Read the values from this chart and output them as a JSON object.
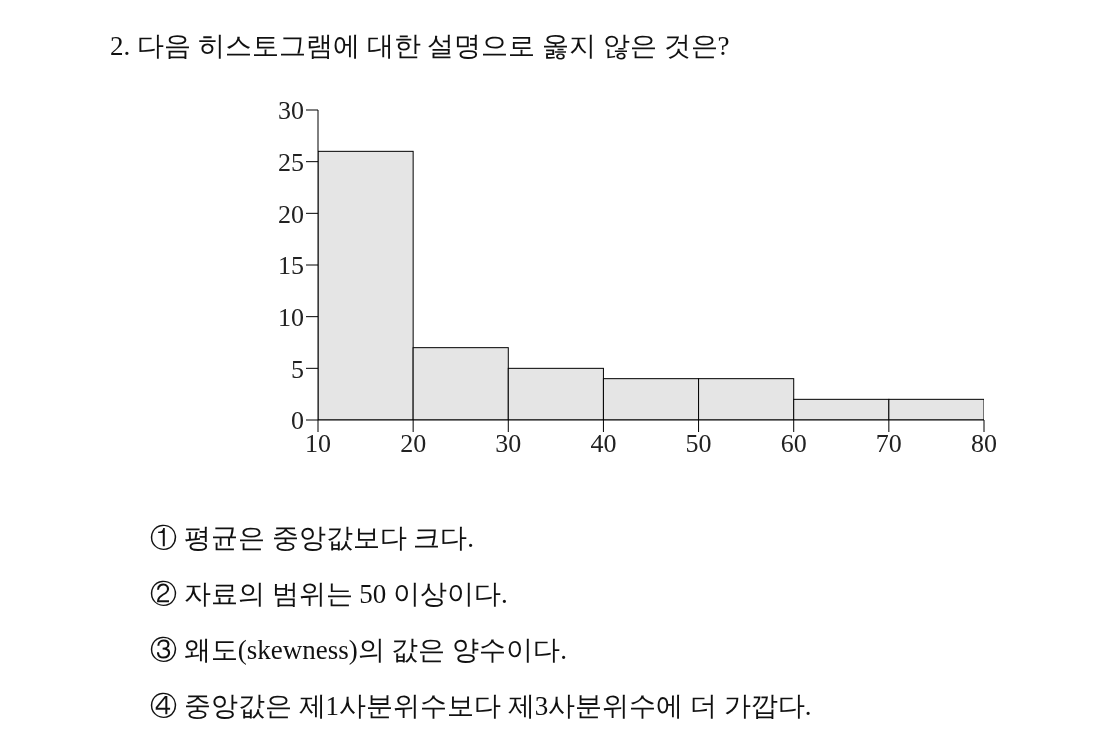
{
  "chart_data": {
    "type": "histogram",
    "title": "2. 다음 히스토그램에 대한 설명으로 옳지 않은 것은?",
    "bins": [
      10,
      20,
      30,
      40,
      50,
      60,
      70,
      80
    ],
    "values": [
      26,
      7,
      5,
      4,
      4,
      2,
      2
    ],
    "color": "#e5e5e5",
    "xlim": [
      10,
      80
    ],
    "xticks": [
      10,
      20,
      30,
      40,
      50,
      60,
      70,
      80
    ],
    "ylim": [
      0,
      30
    ],
    "yticks": [
      0,
      5,
      10,
      15,
      20,
      25,
      30
    ],
    "annotations": [
      "① 평균은 중앙값보다 크다.",
      "② 자료의 범위는 50 이상이다.",
      "③ 왜도(skewness)의 값은 양수이다.",
      "④ 중앙값은 제1사분위수보다 제3사분위수에 더 가깝다."
    ]
  }
}
